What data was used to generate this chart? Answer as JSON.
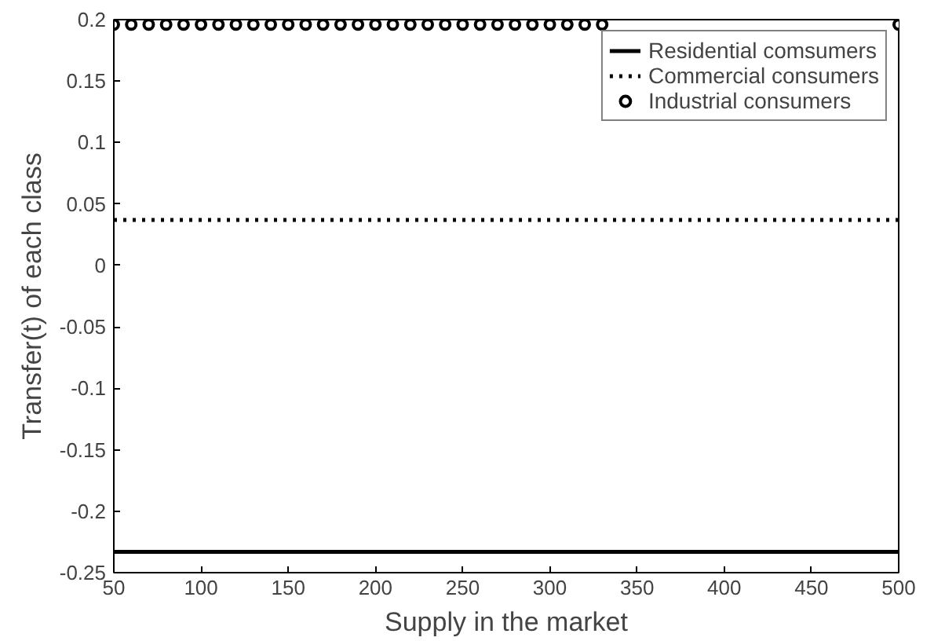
{
  "chart_data": {
    "type": "line",
    "xlabel": "Supply in the market",
    "ylabel": "Transfer(t) of each class",
    "xlim": [
      50,
      500
    ],
    "ylim": [
      -0.25,
      0.2
    ],
    "xticks": [
      50,
      100,
      150,
      200,
      250,
      300,
      350,
      400,
      450,
      500
    ],
    "yticks": [
      -0.25,
      -0.2,
      -0.15,
      -0.1,
      -0.05,
      0,
      0.05,
      0.1,
      0.15,
      0.2
    ],
    "grid": false,
    "legend": "top right",
    "series": [
      {
        "name": "Residential comsumers",
        "color": "#000000",
        "line_style": "solid",
        "marker": "none",
        "x": [
          50,
          500
        ],
        "values": [
          -0.233,
          -0.233
        ]
      },
      {
        "name": "Commercial consumers",
        "color": "#000000",
        "line_style": "dotted",
        "marker": "none",
        "x": [
          50,
          500
        ],
        "values": [
          0.037,
          0.037
        ]
      },
      {
        "name": "Industrial consumers",
        "type": "scatter",
        "color": "#000000",
        "marker": "circle",
        "x": [
          50,
          60,
          70,
          80,
          90,
          100,
          110,
          120,
          130,
          140,
          150,
          160,
          170,
          180,
          190,
          200,
          210,
          220,
          230,
          240,
          250,
          260,
          270,
          280,
          290,
          300,
          310,
          320,
          330,
          340,
          350,
          360,
          370,
          380,
          390,
          400,
          410,
          420,
          430,
          440,
          450,
          460,
          470,
          480,
          490,
          500
        ],
        "values": [
          0.196,
          0.196,
          0.196,
          0.196,
          0.196,
          0.196,
          0.196,
          0.196,
          0.196,
          0.196,
          0.196,
          0.196,
          0.196,
          0.196,
          0.196,
          0.196,
          0.196,
          0.196,
          0.196,
          0.196,
          0.196,
          0.196,
          0.196,
          0.196,
          0.196,
          0.196,
          0.196,
          0.196,
          0.196,
          null,
          null,
          null,
          null,
          null,
          null,
          null,
          null,
          null,
          null,
          null,
          null,
          null,
          null,
          null,
          null,
          0.196
        ]
      }
    ]
  }
}
